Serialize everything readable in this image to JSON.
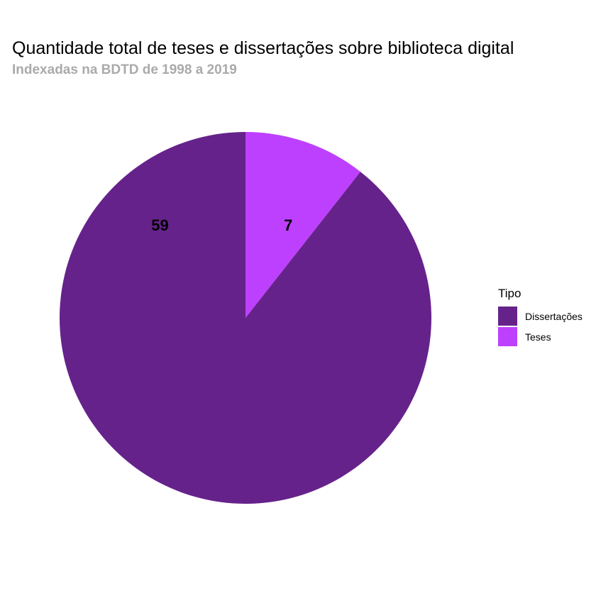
{
  "chart_data": {
    "type": "pie",
    "title": "Quantidade total de teses e dissertações sobre biblioteca digital",
    "subtitle": "Indexadas na BDTD de 1998 a 2019",
    "legend_title": "Tipo",
    "legend_position": "right",
    "slices": [
      {
        "name": "Teses",
        "value": 7,
        "label": "7",
        "color": "#be40ff"
      },
      {
        "name": "Dissertações",
        "value": 59,
        "label": "59",
        "color": "#66228b"
      }
    ],
    "legend_order": [
      "Dissertações",
      "Teses"
    ]
  }
}
